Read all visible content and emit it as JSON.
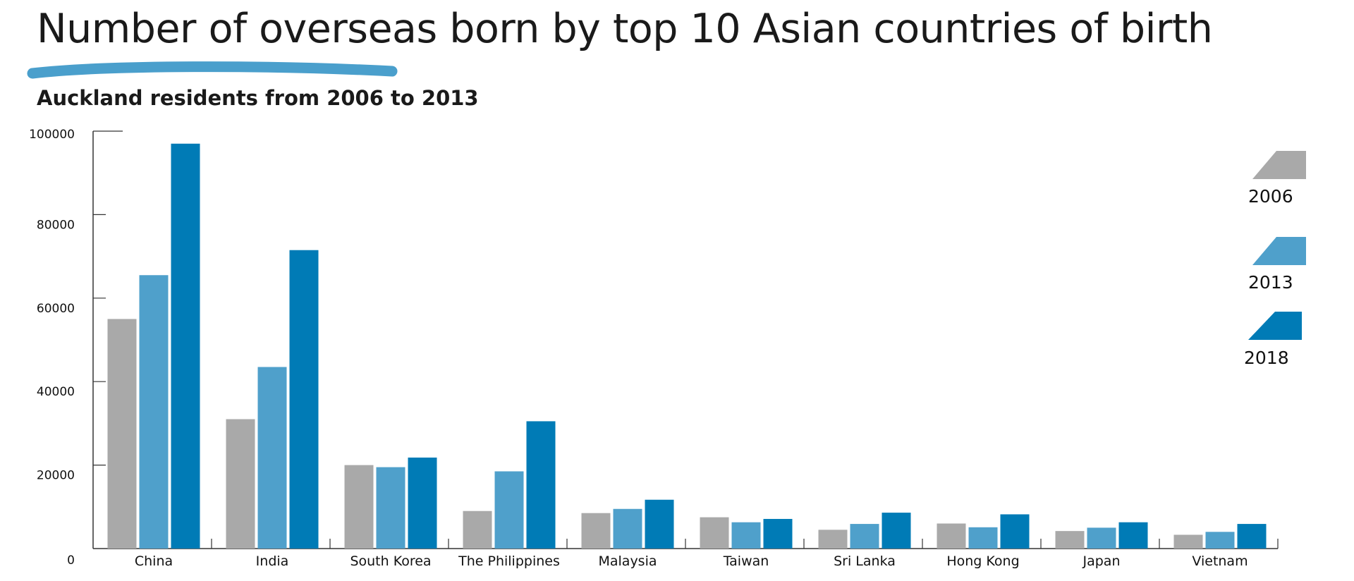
{
  "title": "Number of overseas born by top 10 Asian countries of birth",
  "subtitle": "Auckland residents from 2006 to 2013",
  "colors": {
    "accent_underline": "#4a9fcc",
    "series_2006": "#a9a9a9",
    "series_2013": "#4fa0cb",
    "series_2018": "#007bb6",
    "axis": "#333333"
  },
  "chart_data": {
    "type": "bar",
    "title": "Number of overseas born by top 10 Asian countries of birth",
    "subtitle": "Auckland residents from 2006 to 2013",
    "xlabel": "",
    "ylabel": "",
    "ylim": [
      0,
      100000
    ],
    "yticks": [
      "0",
      "20000",
      "40000",
      "60000",
      "80000",
      "100000"
    ],
    "legend_position": "right",
    "grid": false,
    "categories": [
      "China",
      "India",
      "South Korea",
      "The Philippines",
      "Malaysia",
      "Taiwan",
      "Sri Lanka",
      "Hong Kong",
      "Japan",
      "Vietnam"
    ],
    "series": [
      {
        "name": "2006",
        "color": "#a9a9a9",
        "values": [
          55000,
          31000,
          20000,
          9000,
          8500,
          7500,
          4500,
          6000,
          4200,
          3300
        ]
      },
      {
        "name": "2013",
        "color": "#4fa0cb",
        "values": [
          65500,
          43500,
          19500,
          18500,
          9500,
          6300,
          5900,
          5100,
          5000,
          4000
        ]
      },
      {
        "name": "2018",
        "color": "#007bb6",
        "values": [
          97000,
          71500,
          21800,
          30500,
          11700,
          7100,
          8600,
          8200,
          6300,
          5900
        ]
      }
    ]
  }
}
